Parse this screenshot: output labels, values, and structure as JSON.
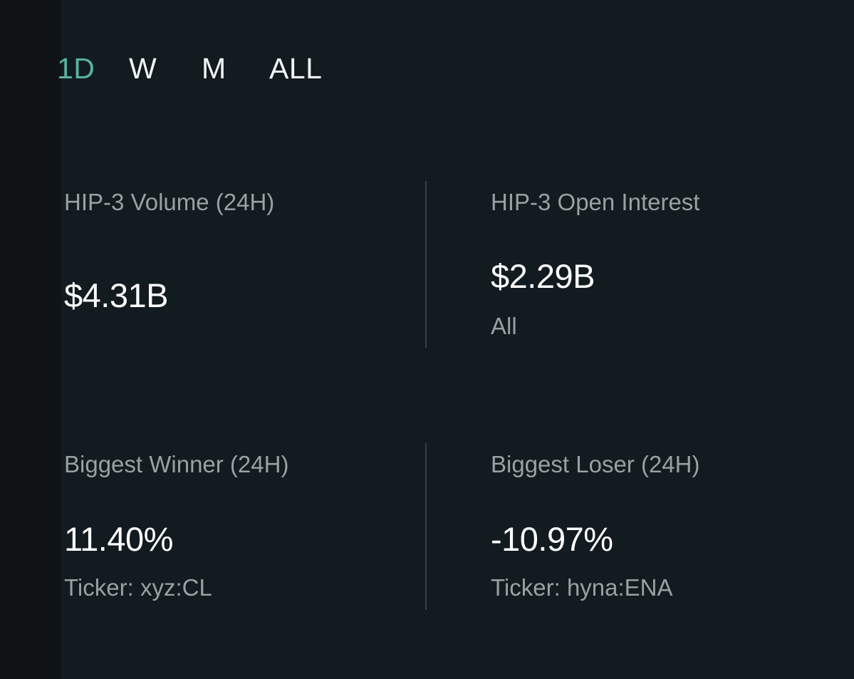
{
  "tabs": [
    {
      "label": "1D",
      "active": true
    },
    {
      "label": "W",
      "active": false
    },
    {
      "label": "M",
      "active": false
    },
    {
      "label": "ALL",
      "active": false
    }
  ],
  "stats": {
    "volume": {
      "label": "HIP-3 Volume (24H)",
      "value": "$4.31B"
    },
    "open_interest": {
      "label": "HIP-3 Open Interest",
      "value": "$2.29B",
      "sub": "All"
    },
    "winner": {
      "label": "Biggest Winner (24H)",
      "value": "11.40%",
      "sub": "Ticker: xyz:CL"
    },
    "loser": {
      "label": "Biggest Loser (24H)",
      "value": "-10.97%",
      "sub": "Ticker: hyna:ENA"
    }
  },
  "colors": {
    "background": "#0f1316",
    "panel": "#121b1f",
    "accent": "#58b3a0",
    "label": "#9aa0a3",
    "value": "#ffffff",
    "divider": "#3a4246"
  }
}
